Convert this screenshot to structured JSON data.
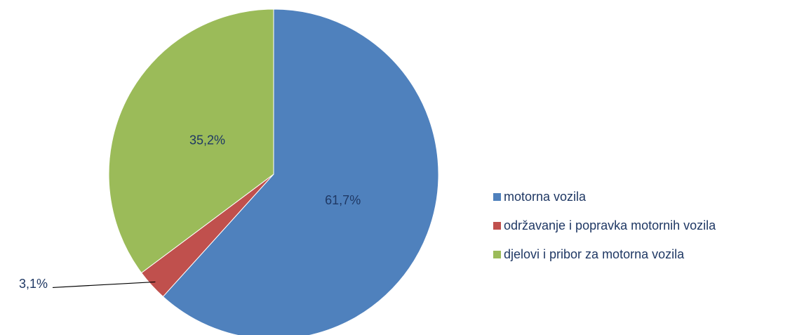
{
  "chart_data": {
    "type": "pie",
    "categories": [
      "motorna vozila",
      "održavanje i popravka motornih vozila",
      "djelovi i pribor za motorna vozila"
    ],
    "values": [
      61.7,
      3.1,
      35.2
    ],
    "value_labels": [
      "61,7%",
      "3,1%",
      "35,2%"
    ],
    "colors": [
      "#4f81bd",
      "#c0504d",
      "#9bbb59"
    ],
    "legend": "right"
  }
}
